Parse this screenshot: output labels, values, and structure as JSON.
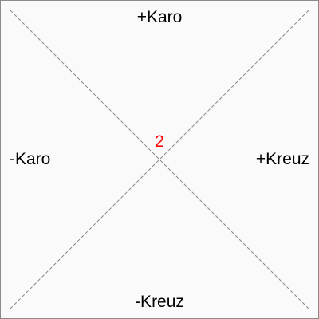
{
  "diagram": {
    "labels": {
      "top": "+Karo",
      "bottom": "-Kreuz",
      "left": "-Karo",
      "right": "+Kreuz"
    },
    "center_value": "2",
    "colors": {
      "center_value": "#ff0000",
      "diagonal_lines": "#888888",
      "background": "#fafafa",
      "border": "#8a8a8a"
    }
  }
}
